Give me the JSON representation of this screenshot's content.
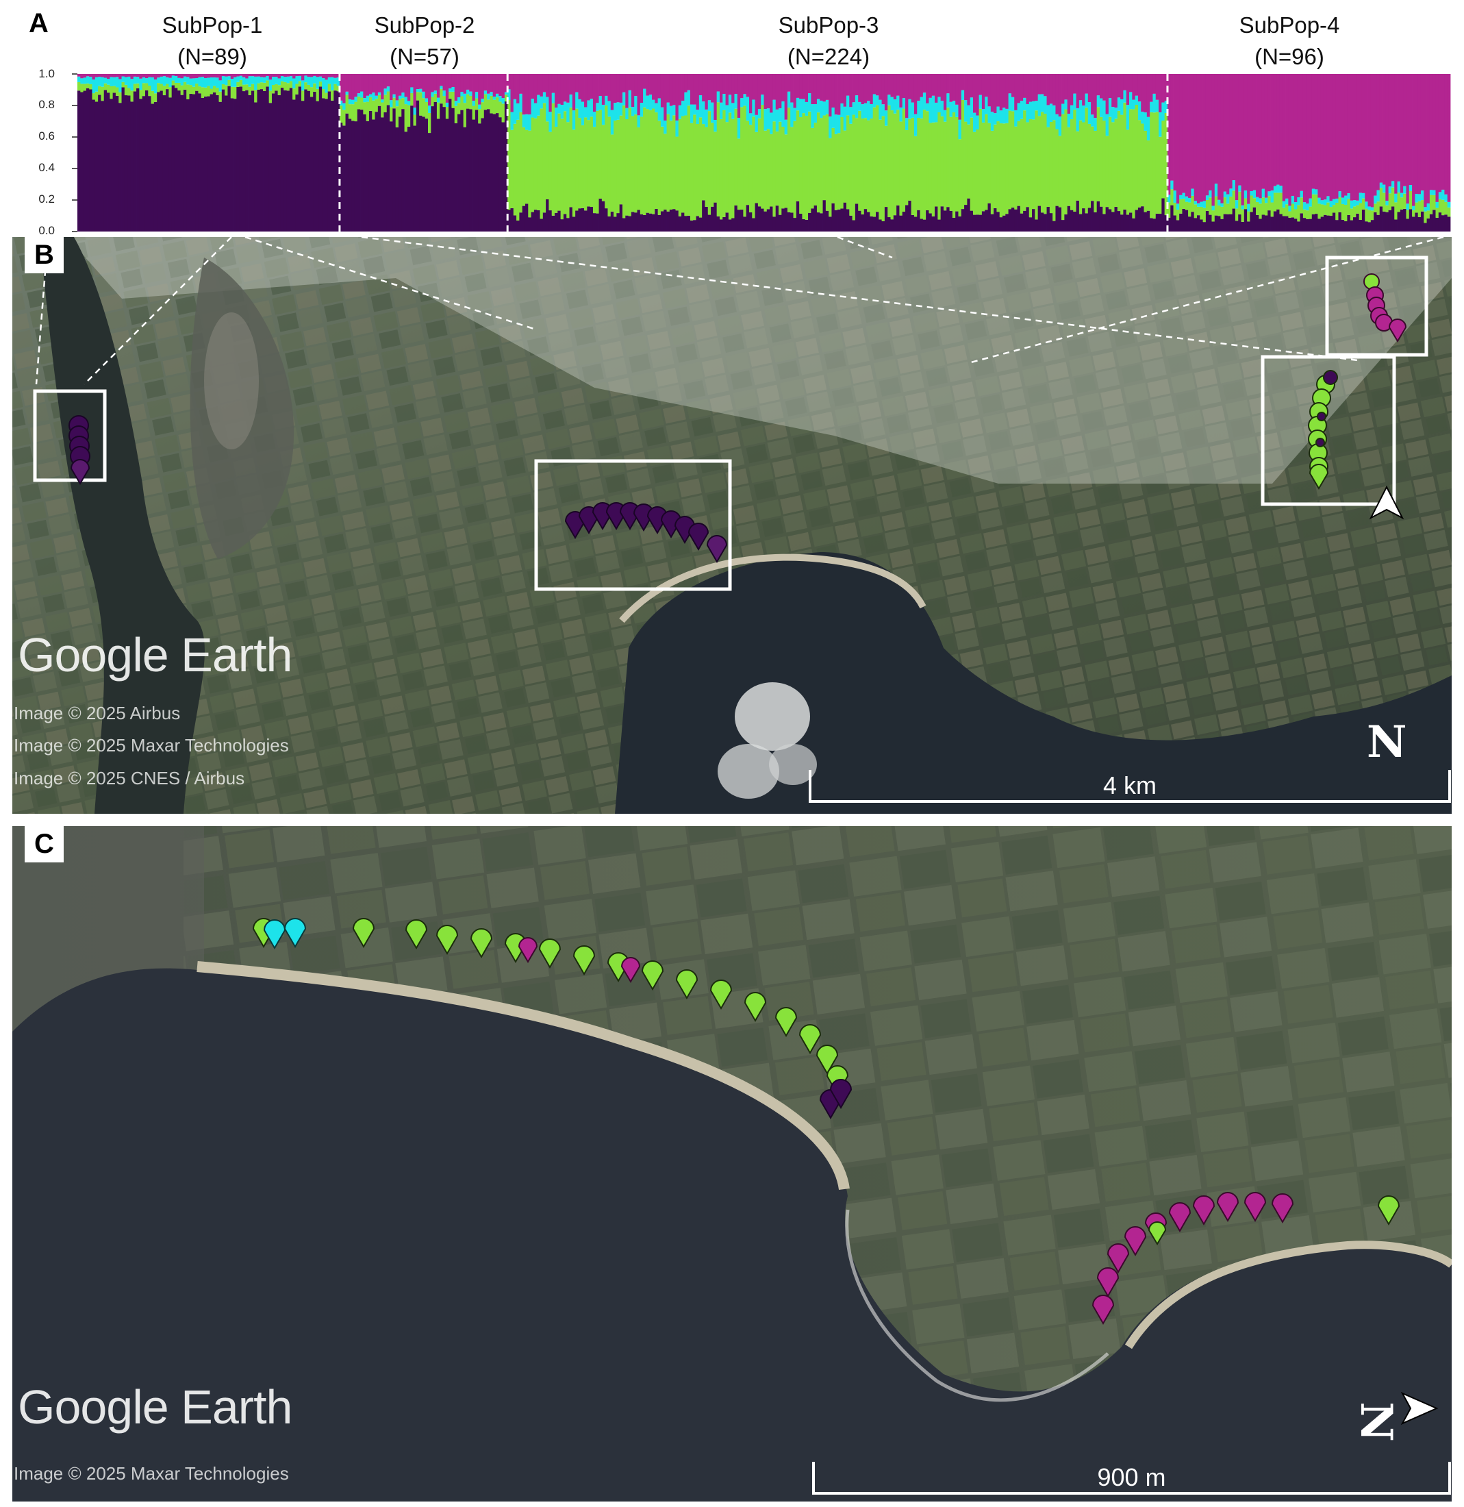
{
  "panels": {
    "a": "A",
    "b": "B",
    "c": "C"
  },
  "structure_plot": {
    "y_ticks": [
      "1.0",
      "0.8",
      "0.6",
      "0.4",
      "0.2",
      "0.0"
    ],
    "colors": {
      "dark_purple": "#3e0a55",
      "cyan": "#1de3ea",
      "green": "#88e23b",
      "magenta": "#b32591"
    },
    "subpops": [
      {
        "name": "SubPop-1",
        "n": "(N=89)"
      },
      {
        "name": "SubPop-2",
        "n": "(N=57)"
      },
      {
        "name": "SubPop-3",
        "n": "(N=224)"
      },
      {
        "name": "SubPop-4",
        "n": "(N=96)"
      }
    ]
  },
  "chart_data": {
    "type": "bar",
    "stacked": true,
    "ylim": [
      0,
      1
    ],
    "series": [
      {
        "name": "",
        "color": "#3e0a55"
      },
      {
        "name": "",
        "color": "#88e23b"
      },
      {
        "name": "",
        "color": "#1de3ea"
      },
      {
        "name": "",
        "color": "#b32591"
      }
    ],
    "groups": [
      {
        "label": "SubPop-1",
        "count": 89,
        "approx_mean_fractions": [
          0.88,
          0.05,
          0.05,
          0.02
        ]
      },
      {
        "label": "SubPop-2",
        "count": 57,
        "approx_mean_fractions": [
          0.75,
          0.09,
          0.03,
          0.13
        ]
      },
      {
        "label": "SubPop-3",
        "count": 224,
        "approx_mean_fractions": [
          0.12,
          0.6,
          0.1,
          0.18
        ]
      },
      {
        "label": "SubPop-4",
        "count": 96,
        "approx_mean_fractions": [
          0.1,
          0.08,
          0.04,
          0.78
        ]
      }
    ]
  },
  "map_b": {
    "logo": "Google Earth",
    "credits": [
      "Image © 2025 Airbus",
      "Image © 2025 Maxar Technologies",
      "Image © 2025 CNES / Airbus"
    ],
    "scale_label": "4 km",
    "north_label": "N"
  },
  "map_c": {
    "logo": "Google Earth",
    "credits": [
      "Image © 2025 Maxar Technologies"
    ],
    "scale_label": "900 m",
    "north_label": "N"
  }
}
